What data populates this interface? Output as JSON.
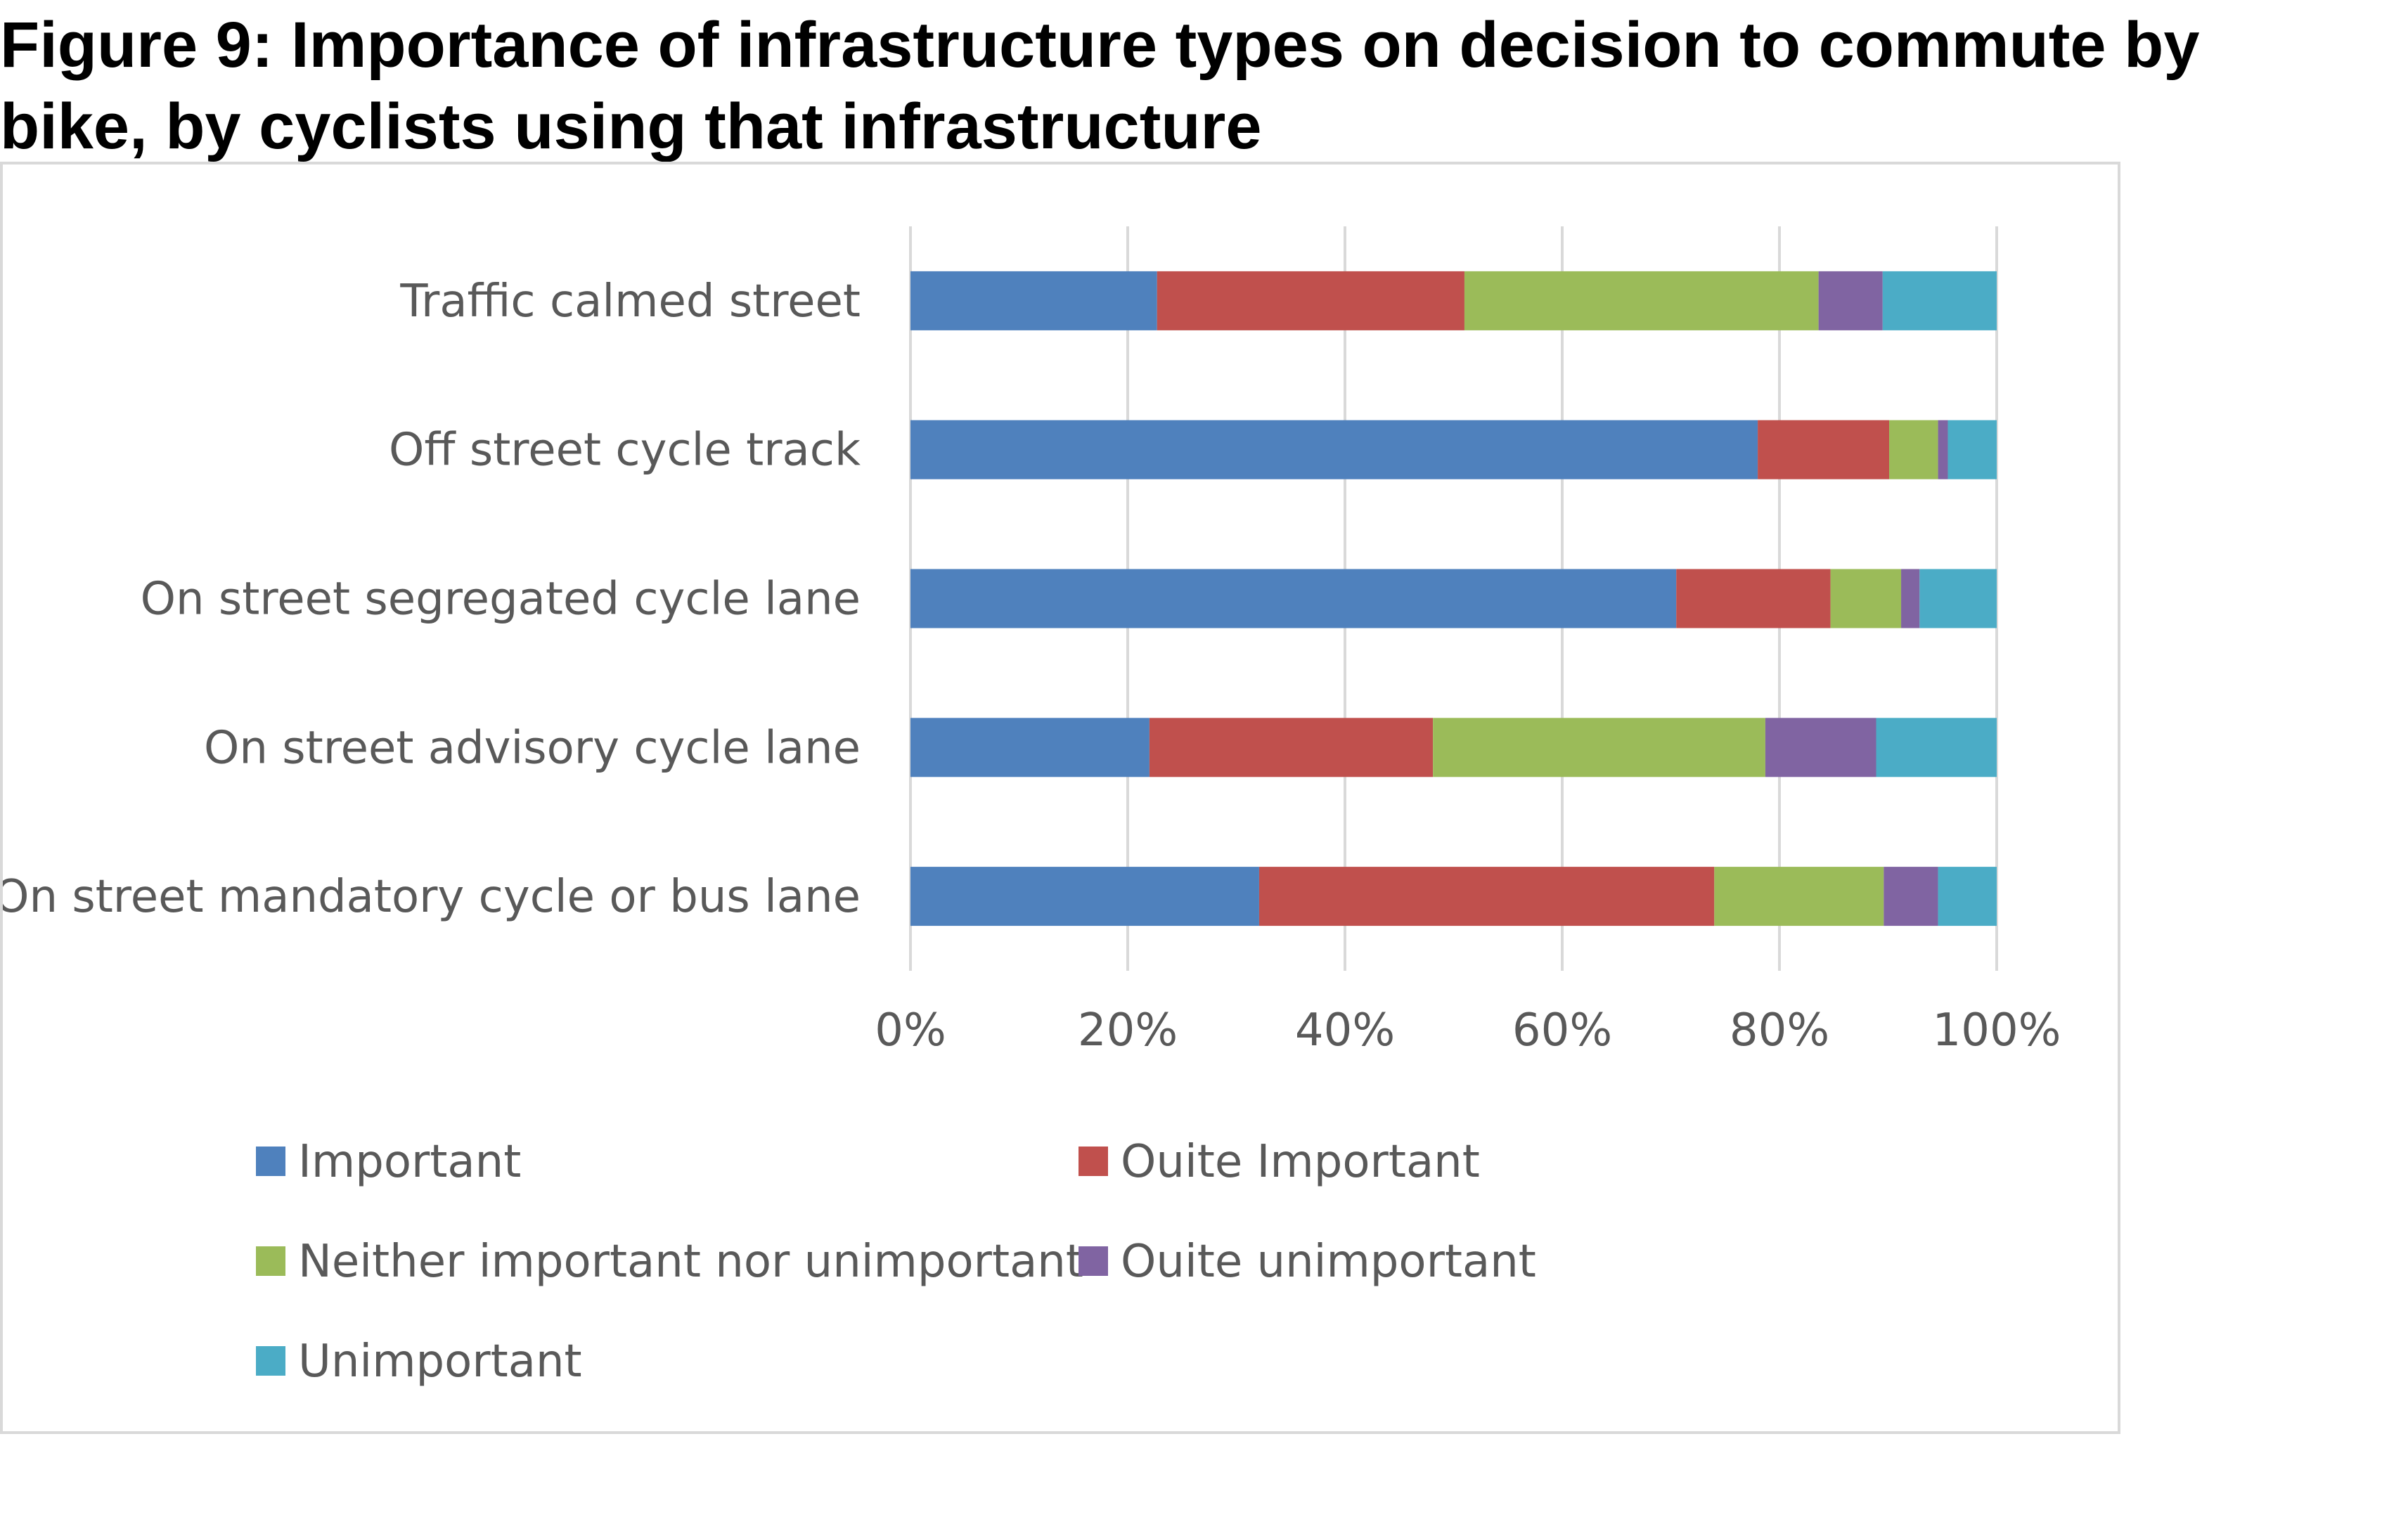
{
  "figure": {
    "title": "Figure 9: Importance of infrastructure types on decision to commute by\nbike, by cyclists using that infrastructure"
  },
  "chart_data": {
    "type": "bar",
    "orientation": "horizontal",
    "stacked": "percent",
    "categories": [
      "Traffic calmed street",
      "Off street cycle track",
      "On street segregated cycle lane",
      "On street advisory cycle lane",
      "On street mandatory cycle or bus lane"
    ],
    "series": [
      {
        "name": "Important",
        "color": "#4f81bd",
        "values": [
          22.7,
          78.0,
          70.5,
          22.0,
          32.1
        ]
      },
      {
        "name": "Ouite Important",
        "color": "#c0504d",
        "values": [
          28.3,
          12.1,
          14.2,
          26.1,
          41.9
        ]
      },
      {
        "name": "Neither important nor unimportant",
        "color": "#9bbb59",
        "values": [
          32.6,
          4.5,
          6.5,
          30.6,
          15.6
        ]
      },
      {
        "name": "Ouite unimportant",
        "color": "#8064a2",
        "values": [
          5.9,
          0.9,
          1.7,
          10.2,
          5.0
        ]
      },
      {
        "name": "Unimportant",
        "color": "#4bacc6",
        "values": [
          10.5,
          4.5,
          7.1,
          11.1,
          5.4
        ]
      }
    ],
    "xaxis": {
      "ticks": [
        "0%",
        "20%",
        "40%",
        "60%",
        "80%",
        "100%"
      ],
      "tick_values": [
        0,
        20,
        40,
        60,
        80,
        100
      ],
      "xlim": [
        0,
        100
      ]
    },
    "grid": true,
    "legend_position": "bottom"
  }
}
